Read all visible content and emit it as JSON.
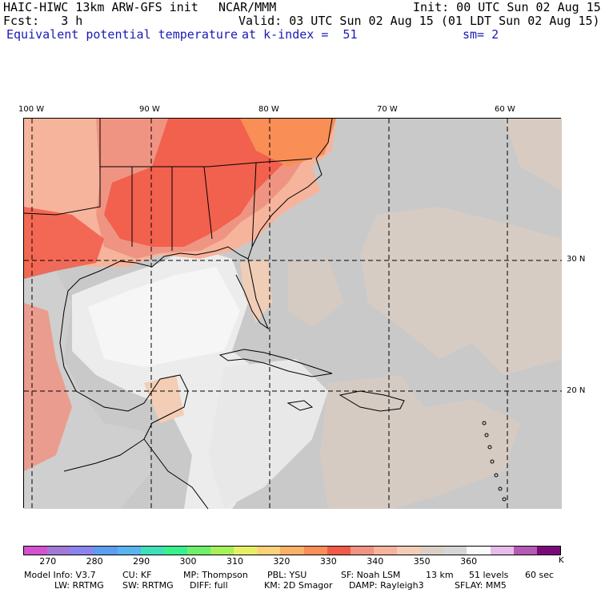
{
  "header": {
    "model_title": "HAIC-HIWC 13km ARW-GFS init",
    "org": "NCAR/MMM",
    "init": "Init: 00 UTC Sun 02 Aug 15",
    "fcst": "Fcst:   3 h",
    "valid": "Valid: 03 UTC Sun 02 Aug 15 (01 LDT Sun 02 Aug 15)",
    "field": "Equivalent potential temperature",
    "level": "at k-index =  51",
    "smoothing": "sm= 2"
  },
  "map": {
    "lon_labels": [
      "100 W",
      "90 W",
      "80 W",
      "70 W",
      "60 W"
    ],
    "lat_labels": [
      "30 N",
      "20 N"
    ]
  },
  "colorbar": {
    "colors": [
      "#d452cf",
      "#a07ad6",
      "#8b84ee",
      "#5b9ef0",
      "#5ab4ef",
      "#3fe0b8",
      "#39f08e",
      "#6ef06a",
      "#a6f05a",
      "#e6f066",
      "#fbd27a",
      "#fbb068",
      "#f98e56",
      "#f25a48",
      "#ef9482",
      "#f6b49c",
      "#f3cdb5",
      "#dcd0c6",
      "#d6d6d6",
      "#fafafa",
      "#e6bce8",
      "#b45ab4",
      "#7a0a7a"
    ],
    "tick_labels": [
      "270",
      "280",
      "290",
      "300",
      "310",
      "320",
      "330",
      "340",
      "350",
      "360"
    ],
    "unit": "K"
  },
  "footer": {
    "line1": [
      "Model Info: V3.7",
      "CU: KF",
      "MP: Thompson",
      "PBL: YSU",
      "SF: Noah LSM",
      "13 km",
      "51 levels",
      "60 sec"
    ],
    "line2": [
      "LW: RRTMG",
      "SW: RRTMG",
      "DIFF: full",
      "KM: 2D Smagor",
      "DAMP: Rayleigh3",
      "SFLAY: MM5"
    ]
  }
}
